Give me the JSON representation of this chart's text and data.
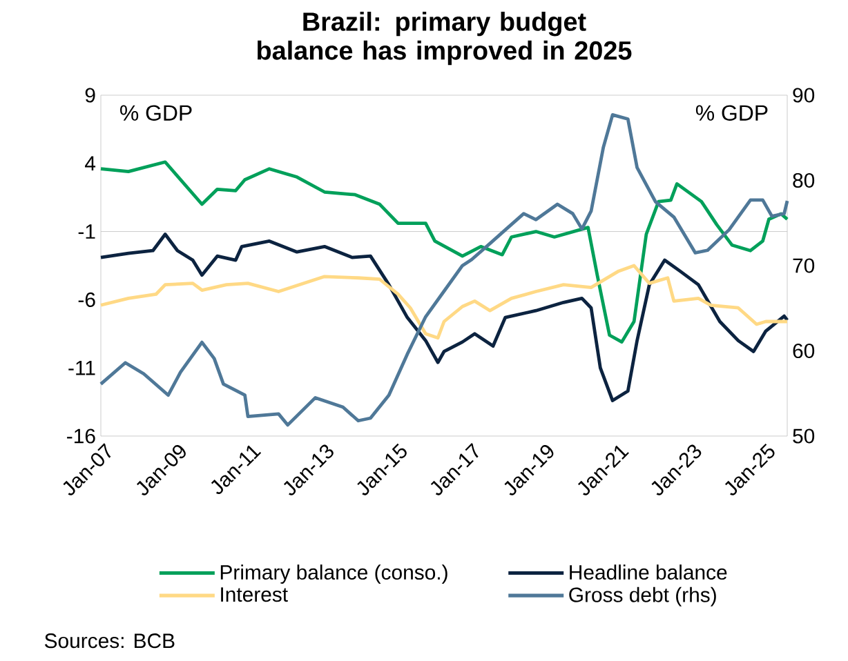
{
  "chart_data": {
    "type": "line",
    "title": "Brazil: primary budget balance has improved in 2025",
    "ylabel": "% GDP",
    "y2label": "% GDP",
    "annotations": [
      "Sources: BCB"
    ],
    "xlim": [
      "2007-01",
      "2025-09"
    ],
    "xticks": [
      {
        "value": "2007-01",
        "label": "Jan-07"
      },
      {
        "value": "2009-01",
        "label": "Jan-09"
      },
      {
        "value": "2011-01",
        "label": "Jan-11"
      },
      {
        "value": "2013-01",
        "label": "Jan-13"
      },
      {
        "value": "2015-01",
        "label": "Jan-15"
      },
      {
        "value": "2017-01",
        "label": "Jan-17"
      },
      {
        "value": "2019-01",
        "label": "Jan-19"
      },
      {
        "value": "2021-01",
        "label": "Jan-21"
      },
      {
        "value": "2023-01",
        "label": "Jan-23"
      },
      {
        "value": "2025-01",
        "label": "Jan-25"
      }
    ],
    "ylim": [
      -16,
      9
    ],
    "yticks": [
      9,
      4,
      -1,
      -6,
      -11,
      -16
    ],
    "y2lim": [
      50,
      90
    ],
    "y2ticks": [
      50,
      60,
      70,
      80,
      90
    ],
    "ref_lines": [
      {
        "axis": "y",
        "value": -1,
        "color": "#bfbfbf"
      }
    ],
    "legend": "bottom",
    "marker": "none",
    "line_style": "solid",
    "series": [
      {
        "name": "Primary balance (conso.)",
        "color": "#00a05a",
        "x": [
          "2007-01",
          "2007-10",
          "2008-10",
          "2009-10",
          "2010-03",
          "2010-09",
          "2010-12",
          "2011-08",
          "2012-05",
          "2013-02",
          "2013-12",
          "2014-08",
          "2015-02",
          "2015-11",
          "2016-02",
          "2016-11",
          "2017-05",
          "2017-12",
          "2018-03",
          "2018-11",
          "2019-05",
          "2020-04",
          "2020-07",
          "2020-11",
          "2021-03",
          "2021-07",
          "2021-11",
          "2022-03",
          "2022-07",
          "2022-09",
          "2023-05",
          "2023-10",
          "2024-03",
          "2024-09",
          "2025-01",
          "2025-03",
          "2025-07",
          "2025-09"
        ],
        "values": [
          3.6,
          3.4,
          4.1,
          1.0,
          2.1,
          2.0,
          2.8,
          3.6,
          3.0,
          1.9,
          1.7,
          1.0,
          -0.4,
          -0.4,
          -1.7,
          -2.8,
          -2.1,
          -2.7,
          -1.4,
          -1.0,
          -1.4,
          -0.7,
          -4.2,
          -8.6,
          -9.1,
          -7.6,
          -1.2,
          1.2,
          1.3,
          2.5,
          1.2,
          -0.5,
          -2.0,
          -2.4,
          -1.7,
          -0.1,
          0.3,
          -0.1
        ]
      },
      {
        "name": "Headline balance",
        "color": "#0c2340",
        "x": [
          "2007-01",
          "2007-10",
          "2008-06",
          "2008-10",
          "2009-02",
          "2009-07",
          "2009-10",
          "2010-03",
          "2010-09",
          "2010-11",
          "2011-08",
          "2012-05",
          "2013-02",
          "2013-11",
          "2014-05",
          "2014-11",
          "2015-05",
          "2015-11",
          "2016-03",
          "2016-05",
          "2016-11",
          "2017-03",
          "2017-09",
          "2018-01",
          "2018-11",
          "2019-08",
          "2020-02",
          "2020-05",
          "2020-08",
          "2020-12",
          "2021-05",
          "2021-08",
          "2021-12",
          "2022-05",
          "2022-10",
          "2023-04",
          "2023-11",
          "2024-05",
          "2024-10",
          "2025-02",
          "2025-08",
          "2025-09"
        ],
        "values": [
          -2.9,
          -2.6,
          -2.4,
          -1.2,
          -2.4,
          -3.1,
          -4.2,
          -2.8,
          -3.1,
          -2.1,
          -1.7,
          -2.5,
          -2.1,
          -2.9,
          -2.8,
          -4.9,
          -7.3,
          -9.0,
          -10.6,
          -9.8,
          -9.1,
          -8.5,
          -9.4,
          -7.3,
          -6.8,
          -6.2,
          -5.9,
          -6.6,
          -11.0,
          -13.4,
          -12.7,
          -9.0,
          -4.9,
          -3.1,
          -3.9,
          -4.9,
          -7.6,
          -9.0,
          -9.8,
          -8.3,
          -7.2,
          -7.5
        ]
      },
      {
        "name": "Interest",
        "color": "#ffd985",
        "x": [
          "2007-01",
          "2007-10",
          "2008-07",
          "2008-10",
          "2009-07",
          "2009-10",
          "2010-06",
          "2011-01",
          "2011-11",
          "2013-02",
          "2014-01",
          "2014-08",
          "2015-02",
          "2015-06",
          "2015-11",
          "2016-03",
          "2016-05",
          "2016-11",
          "2017-03",
          "2017-08",
          "2018-03",
          "2018-11",
          "2019-08",
          "2020-05",
          "2021-02",
          "2021-07",
          "2021-12",
          "2022-06",
          "2022-08",
          "2023-04",
          "2023-08",
          "2024-05",
          "2024-11",
          "2025-02",
          "2025-09"
        ],
        "values": [
          -6.4,
          -5.9,
          -5.6,
          -4.9,
          -4.8,
          -5.3,
          -4.9,
          -4.8,
          -5.4,
          -4.3,
          -4.4,
          -4.5,
          -5.6,
          -6.6,
          -8.5,
          -8.8,
          -7.6,
          -6.5,
          -6.1,
          -6.8,
          -5.9,
          -5.4,
          -4.9,
          -5.1,
          -3.9,
          -3.5,
          -4.8,
          -4.4,
          -6.1,
          -5.9,
          -6.4,
          -6.6,
          -7.8,
          -7.6,
          -7.6
        ]
      },
      {
        "name": "Gross debt (rhs)",
        "color": "#4f7898",
        "axis": "y2",
        "x": [
          "2007-01",
          "2007-09",
          "2008-03",
          "2008-11",
          "2009-03",
          "2009-10",
          "2010-02",
          "2010-05",
          "2010-12",
          "2011-01",
          "2011-11",
          "2012-02",
          "2012-11",
          "2013-08",
          "2014-01",
          "2014-05",
          "2014-11",
          "2015-05",
          "2015-11",
          "2016-05",
          "2016-11",
          "2017-02",
          "2017-08",
          "2018-01",
          "2018-07",
          "2018-11",
          "2019-06",
          "2019-11",
          "2020-02",
          "2020-05",
          "2020-09",
          "2020-12",
          "2021-05",
          "2021-08",
          "2022-02",
          "2022-08",
          "2023-03",
          "2023-07",
          "2024-02",
          "2024-09",
          "2025-01",
          "2025-04",
          "2025-08",
          "2025-09"
        ],
        "values": [
          56.1,
          58.6,
          57.3,
          54.8,
          57.5,
          61.0,
          59.1,
          56.1,
          54.8,
          52.3,
          52.6,
          51.3,
          54.5,
          53.4,
          51.8,
          52.1,
          54.8,
          59.6,
          64.0,
          67.0,
          70.0,
          70.7,
          72.6,
          74.2,
          76.1,
          75.4,
          77.2,
          76.1,
          74.3,
          76.4,
          83.9,
          87.7,
          87.2,
          81.5,
          77.5,
          75.7,
          71.5,
          71.8,
          74.2,
          77.7,
          77.7,
          75.8,
          76.1,
          77.6
        ]
      }
    ]
  }
}
